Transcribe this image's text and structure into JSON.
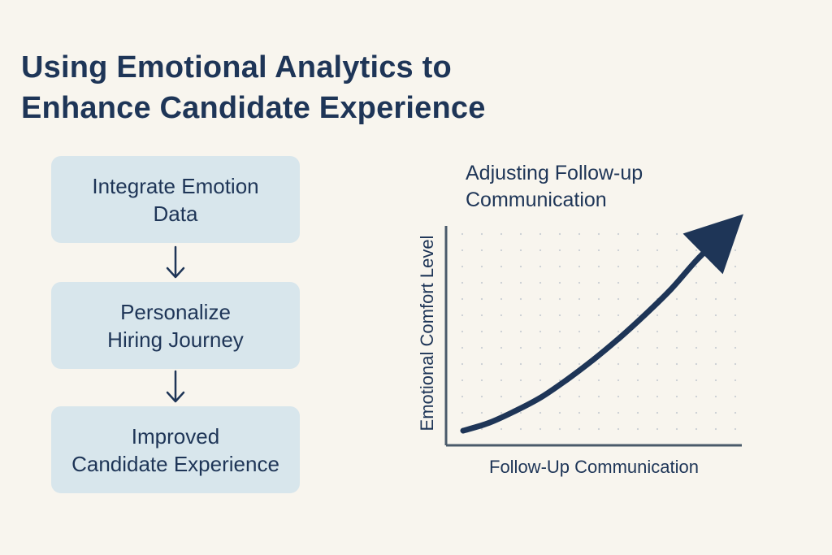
{
  "title": {
    "line1": "Using Emotional Analytics to",
    "line2": "Enhance Candidate Experience"
  },
  "flow": {
    "steps": [
      {
        "line1": "Integrate Emotion",
        "line2": "Data"
      },
      {
        "line1": "Personalize",
        "line2": "Hiring Journey"
      },
      {
        "line1": "Improved",
        "line2": "Candidate Experience"
      }
    ]
  },
  "chart_data": {
    "type": "line",
    "title": "Adjusting Follow-up Communication",
    "title_lines": [
      "Adjusting Follow-up",
      "Communication"
    ],
    "xlabel": "Follow-Up Communication",
    "ylabel": "Emotional Comfort Level",
    "grid": true,
    "grid_style": "dotted",
    "line_color": "#1e3557",
    "arrowhead": true,
    "series": [
      {
        "x": [
          0,
          0.1,
          0.2,
          0.3,
          0.4,
          0.5,
          0.6,
          0.7,
          0.8,
          0.9,
          1.0
        ],
        "y": [
          0.0,
          0.04,
          0.1,
          0.17,
          0.26,
          0.36,
          0.47,
          0.59,
          0.72,
          0.87,
          1.0
        ]
      }
    ],
    "xlim": [
      0,
      1
    ],
    "ylim": [
      0,
      1
    ]
  },
  "colors": {
    "background": "#f8f5ee",
    "box_fill": "#d8e6ec",
    "text": "#1e3557",
    "axis": "#4a5a6a",
    "grid_dots": "#c9ced3"
  }
}
